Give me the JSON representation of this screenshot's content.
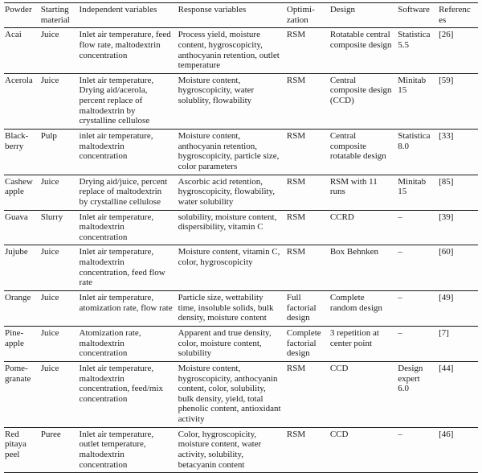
{
  "table": {
    "columns": [
      "Powder",
      "Starting material",
      "Independent variables",
      "Response variables",
      "Optimi-zation",
      "Design",
      "Software",
      "References"
    ],
    "rows": [
      {
        "powder": "Acai",
        "starting_material": "Juice",
        "independent_variables": "Inlet air temperature, feed flow rate, maltodextrin concentration",
        "response_variables": "Process yield, moisture content, hygroscopicity, anthocyanin retention, outlet temperature",
        "optimization": "RSM",
        "design": "Rotatable central composite design",
        "software": "Statistica 5.5",
        "references": "[26]"
      },
      {
        "powder": "Acerola",
        "starting_material": "Juice",
        "independent_variables": "Inlet air temperature, Drying aid/acerola, percent replace of maltodextrin by crystalline cellulose",
        "response_variables": "Moisture content, hygroscopicity, water solublity, flowability",
        "optimization": "RSM",
        "design": "Central composite design (CCD)",
        "software": "Minitab 15",
        "references": "[59]"
      },
      {
        "powder": "Black-berry",
        "starting_material": "Pulp",
        "independent_variables": "inlet air temperature, maltodextrin concentration",
        "response_variables": "Moisture content, anthocyanin retention, hygroscopicity, particle size, color parameters",
        "optimization": "RSM",
        "design": "Central composite rotatable design",
        "software": "Statistica 8.0",
        "references": "[33]"
      },
      {
        "powder": "Cashew apple",
        "starting_material": "Juice",
        "independent_variables": "Drying aid/juice, percent replace of maltodextrin by crystalline cellulose",
        "response_variables": "Ascorbic acid retention, hygroscopicity, flowability, water solubility",
        "optimization": "RSM",
        "design": "RSM with 11 runs",
        "software": "Minitab 15",
        "references": "[85]"
      },
      {
        "powder": "Guava",
        "starting_material": "Slurry",
        "independent_variables": "Inlet air temperature, maltodextrin concentration",
        "response_variables": "solubility, moisture content, dispersibility, vitamin C",
        "optimization": "RSM",
        "design": "CCRD",
        "software": "–",
        "references": "[39]"
      },
      {
        "powder": "Jujube",
        "starting_material": "Juice",
        "independent_variables": "Inlet air temperature, maltodextrin concentration, feed flow rate",
        "response_variables": "Moisture content, vitamin C, color, hygroscopicity",
        "optimization": "RSM",
        "design": "Box Behnken",
        "software": "–",
        "references": "[60]"
      },
      {
        "powder": "Orange",
        "starting_material": "Juice",
        "independent_variables": "Inlet air temperature, atomization rate, flow rate",
        "response_variables": "Particle size, wettability time, insoluble solids, bulk density, moisture content",
        "optimization": "Full factorial design",
        "design": "Complete random design",
        "software": "–",
        "references": "[49]"
      },
      {
        "powder": "Pine-apple",
        "starting_material": "Juice",
        "independent_variables": "Atomization rate, maltodextrin concentration",
        "response_variables": "Apparent and true density, color, moisture content, solubility",
        "optimization": "Complete factorial design",
        "design": "3 repetition at center point",
        "software": "–",
        "references": "[7]"
      },
      {
        "powder": "Pome-granate",
        "starting_material": "Juice",
        "independent_variables": "Inlet air temperature, maltodextrin concentration, feed/mix concentration",
        "response_variables": "Moisture content, hygroscopicity, anthocyanin content, color, solubility, bulk density, yield, total phenolic content, antioxidant activity",
        "optimization": "RSM",
        "design": "CCD",
        "software": "Design expert 6.0",
        "references": "[44]"
      },
      {
        "powder": "Red pitaya peel",
        "starting_material": "Puree",
        "independent_variables": "Inlet air temperature, outlet temperature, maltodextrin concentration",
        "response_variables": "Color, hygroscopicity, moisture content, water activity, solubility, betacyanin content",
        "optimization": "RSM",
        "design": "CCD",
        "software": "–",
        "references": "[46]"
      }
    ]
  }
}
